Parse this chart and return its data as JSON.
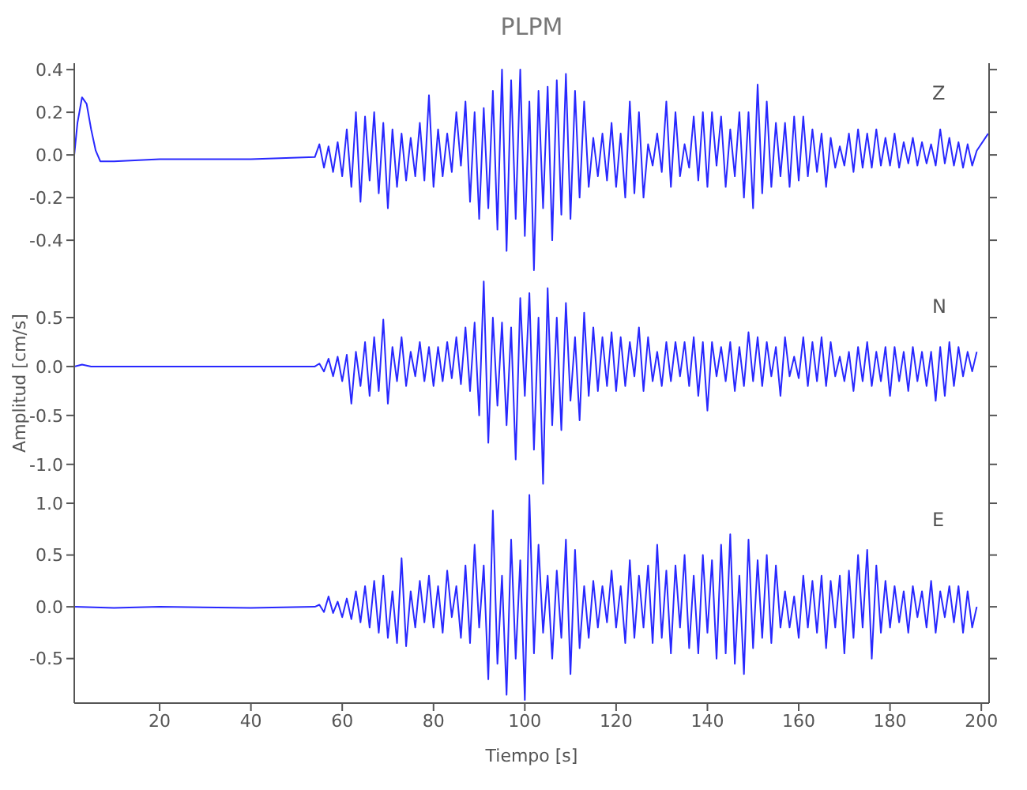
{
  "chart_data": [
    {
      "type": "line",
      "title": "PLPM",
      "annotations": [
        "Z"
      ],
      "xlim": [
        1.3,
        201.7
      ],
      "xticks": [
        20,
        40,
        60,
        80,
        100,
        120,
        140,
        160,
        180,
        200
      ],
      "ylim": [
        -0.57,
        0.43
      ],
      "yticks": [
        -0.4,
        -0.2,
        {
          "value": 0,
          "label": "0.0"
        },
        0.2,
        0.4
      ],
      "tick_labels": "y",
      "series": [
        {
          "color": "#2828ff",
          "x": [
            1.3,
            2,
            3,
            4,
            5,
            6,
            7,
            10,
            20,
            40,
            54,
            55,
            56,
            57,
            58,
            59,
            60,
            61,
            62,
            63,
            64,
            65,
            66,
            67,
            68,
            69,
            70,
            71,
            72,
            73,
            74,
            75,
            76,
            77,
            78,
            79,
            80,
            81,
            82,
            83,
            84,
            85,
            86,
            87,
            88,
            89,
            90,
            91,
            92,
            93,
            94,
            95,
            96,
            97,
            98,
            99,
            100,
            101,
            102,
            103,
            104,
            105,
            106,
            107,
            108,
            109,
            110,
            111,
            112,
            113,
            114,
            115,
            116,
            117,
            118,
            119,
            120,
            121,
            122,
            123,
            124,
            125,
            126,
            127,
            128,
            129,
            130,
            131,
            132,
            133,
            134,
            135,
            136,
            137,
            138,
            139,
            140,
            141,
            142,
            143,
            144,
            145,
            146,
            147,
            148,
            149,
            150,
            151,
            152,
            153,
            154,
            155,
            156,
            157,
            158,
            159,
            160,
            161,
            162,
            163,
            164,
            165,
            166,
            167,
            168,
            169,
            170,
            171,
            172,
            173,
            174,
            175,
            176,
            177,
            178,
            179,
            180,
            181,
            182,
            183,
            184,
            185,
            186,
            187,
            188,
            189,
            190,
            191,
            192,
            193,
            194,
            195,
            196,
            197,
            198,
            199,
            201.5
          ],
          "values": [
            0.0,
            0.15,
            0.27,
            0.24,
            0.12,
            0.02,
            -0.03,
            -0.03,
            -0.02,
            -0.02,
            -0.01,
            0.05,
            -0.06,
            0.04,
            -0.08,
            0.06,
            -0.1,
            0.12,
            -0.15,
            0.2,
            -0.22,
            0.18,
            -0.12,
            0.2,
            -0.18,
            0.15,
            -0.25,
            0.12,
            -0.15,
            0.1,
            -0.12,
            0.08,
            -0.1,
            0.15,
            -0.12,
            0.28,
            -0.15,
            0.12,
            -0.1,
            0.1,
            -0.08,
            0.2,
            -0.05,
            0.25,
            -0.22,
            0.2,
            -0.3,
            0.22,
            -0.25,
            0.3,
            -0.35,
            0.4,
            -0.45,
            0.35,
            -0.3,
            0.4,
            -0.38,
            0.25,
            -0.54,
            0.3,
            -0.25,
            0.32,
            -0.4,
            0.35,
            -0.28,
            0.38,
            -0.3,
            0.3,
            -0.2,
            0.25,
            -0.15,
            0.08,
            -0.1,
            0.1,
            -0.12,
            0.15,
            -0.15,
            0.1,
            -0.2,
            0.25,
            -0.18,
            0.2,
            -0.2,
            0.05,
            -0.05,
            0.1,
            -0.08,
            0.25,
            -0.15,
            0.2,
            -0.1,
            0.05,
            -0.06,
            0.18,
            -0.12,
            0.2,
            -0.15,
            0.2,
            -0.05,
            0.18,
            -0.15,
            0.12,
            -0.1,
            0.2,
            -0.2,
            0.2,
            -0.25,
            0.33,
            -0.18,
            0.25,
            -0.15,
            0.15,
            -0.1,
            0.15,
            -0.15,
            0.18,
            -0.12,
            0.18,
            -0.1,
            0.12,
            -0.08,
            0.1,
            -0.15,
            0.08,
            -0.06,
            0.04,
            -0.05,
            0.1,
            -0.08,
            0.12,
            -0.06,
            0.1,
            -0.06,
            0.12,
            -0.05,
            0.08,
            -0.05,
            0.1,
            -0.06,
            0.06,
            -0.04,
            0.08,
            -0.05,
            0.06,
            -0.04,
            0.05,
            -0.05,
            0.12,
            -0.04,
            0.08,
            -0.05,
            0.06,
            -0.06,
            0.05,
            -0.05,
            0.02,
            0.1
          ]
        }
      ]
    },
    {
      "type": "line",
      "ylabel": "Amplitud [cm/s]",
      "annotations": [
        "N"
      ],
      "xlim": [
        1.3,
        201.7
      ],
      "xticks": [
        20,
        40,
        60,
        80,
        100,
        120,
        140,
        160,
        180,
        200
      ],
      "ylim": [
        -1.26,
        0.92
      ],
      "yticks": [
        {
          "value": -1,
          "label": "-1.0"
        },
        -0.5,
        {
          "value": 0,
          "label": "0.0"
        },
        0.5
      ],
      "tick_labels": "y",
      "series": [
        {
          "color": "#2828ff",
          "x": [
            1.3,
            3,
            5,
            20,
            54,
            55,
            56,
            57,
            58,
            59,
            60,
            61,
            62,
            63,
            64,
            65,
            66,
            67,
            68,
            69,
            70,
            71,
            72,
            73,
            74,
            75,
            76,
            77,
            78,
            79,
            80,
            81,
            82,
            83,
            84,
            85,
            86,
            87,
            88,
            89,
            90,
            91,
            92,
            93,
            94,
            95,
            96,
            97,
            98,
            99,
            100,
            101,
            102,
            103,
            104,
            105,
            106,
            107,
            108,
            109,
            110,
            111,
            112,
            113,
            114,
            115,
            116,
            117,
            118,
            119,
            120,
            121,
            122,
            123,
            124,
            125,
            126,
            127,
            128,
            129,
            130,
            131,
            132,
            133,
            134,
            135,
            136,
            137,
            138,
            139,
            140,
            141,
            142,
            143,
            144,
            145,
            146,
            147,
            148,
            149,
            150,
            151,
            152,
            153,
            154,
            155,
            156,
            157,
            158,
            159,
            160,
            161,
            162,
            163,
            164,
            165,
            166,
            167,
            168,
            169,
            170,
            171,
            172,
            173,
            174,
            175,
            176,
            177,
            178,
            179,
            180,
            181,
            182,
            183,
            184,
            185,
            186,
            187,
            188,
            189,
            190,
            191,
            192,
            193,
            194,
            195,
            196,
            197,
            198,
            199
          ],
          "values": [
            0.0,
            0.02,
            0.0,
            0.0,
            0.0,
            0.03,
            -0.05,
            0.08,
            -0.1,
            0.1,
            -0.15,
            0.12,
            -0.38,
            0.15,
            -0.2,
            0.25,
            -0.3,
            0.3,
            -0.25,
            0.48,
            -0.38,
            0.2,
            -0.15,
            0.3,
            -0.2,
            0.15,
            -0.1,
            0.25,
            -0.15,
            0.2,
            -0.2,
            0.2,
            -0.15,
            0.25,
            -0.12,
            0.3,
            -0.18,
            0.4,
            -0.25,
            0.45,
            -0.5,
            0.87,
            -0.78,
            0.5,
            -0.4,
            0.45,
            -0.6,
            0.4,
            -0.95,
            0.7,
            -0.3,
            0.75,
            -0.85,
            0.5,
            -1.2,
            0.8,
            -0.6,
            0.5,
            -0.65,
            0.65,
            -0.35,
            0.3,
            -0.55,
            0.55,
            -0.3,
            0.4,
            -0.25,
            0.3,
            -0.2,
            0.35,
            -0.25,
            0.3,
            -0.2,
            0.25,
            -0.1,
            0.4,
            -0.25,
            0.3,
            -0.15,
            0.15,
            -0.2,
            0.25,
            -0.15,
            0.25,
            -0.1,
            0.25,
            -0.2,
            0.3,
            -0.3,
            0.25,
            -0.45,
            0.25,
            -0.1,
            0.2,
            -0.15,
            0.25,
            -0.25,
            0.2,
            -0.2,
            0.35,
            -0.15,
            0.3,
            -0.2,
            0.25,
            -0.1,
            0.2,
            -0.3,
            0.3,
            -0.1,
            0.1,
            -0.12,
            0.3,
            -0.2,
            0.25,
            -0.15,
            0.3,
            -0.2,
            0.25,
            -0.1,
            0.1,
            -0.15,
            0.15,
            -0.25,
            0.2,
            -0.15,
            0.25,
            -0.2,
            0.15,
            -0.15,
            0.2,
            -0.3,
            0.2,
            -0.15,
            0.15,
            -0.25,
            0.2,
            -0.15,
            0.15,
            -0.2,
            0.15,
            -0.35,
            0.2,
            -0.3,
            0.25,
            -0.2,
            0.2,
            -0.1,
            0.15,
            -0.05,
            0.15
          ]
        }
      ]
    },
    {
      "type": "line",
      "xlabel": "Tiempo [s]",
      "annotations": [
        "E"
      ],
      "xlim": [
        1.3,
        201.7
      ],
      "xticks": [
        20,
        40,
        60,
        80,
        100,
        120,
        140,
        160,
        180,
        200
      ],
      "ylim": [
        -0.93,
        1.13
      ],
      "yticks": [
        -0.5,
        {
          "value": 0,
          "label": "0.0"
        },
        0.5,
        {
          "value": 1,
          "label": "1.0"
        }
      ],
      "series": [
        {
          "color": "#2828ff",
          "x": [
            1.3,
            10,
            20,
            40,
            54,
            55,
            56,
            57,
            58,
            59,
            60,
            61,
            62,
            63,
            64,
            65,
            66,
            67,
            68,
            69,
            70,
            71,
            72,
            73,
            74,
            75,
            76,
            77,
            78,
            79,
            80,
            81,
            82,
            83,
            84,
            85,
            86,
            87,
            88,
            89,
            90,
            91,
            92,
            93,
            94,
            95,
            96,
            97,
            98,
            99,
            100,
            101,
            102,
            103,
            104,
            105,
            106,
            107,
            108,
            109,
            110,
            111,
            112,
            113,
            114,
            115,
            116,
            117,
            118,
            119,
            120,
            121,
            122,
            123,
            124,
            125,
            126,
            127,
            128,
            129,
            130,
            131,
            132,
            133,
            134,
            135,
            136,
            137,
            138,
            139,
            140,
            141,
            142,
            143,
            144,
            145,
            146,
            147,
            148,
            149,
            150,
            151,
            152,
            153,
            154,
            155,
            156,
            157,
            158,
            159,
            160,
            161,
            162,
            163,
            164,
            165,
            166,
            167,
            168,
            169,
            170,
            171,
            172,
            173,
            174,
            175,
            176,
            177,
            178,
            179,
            180,
            181,
            182,
            183,
            184,
            185,
            186,
            187,
            188,
            189,
            190,
            191,
            192,
            193,
            194,
            195,
            196,
            197,
            198,
            199
          ],
          "values": [
            0.0,
            -0.01,
            0.0,
            -0.01,
            0.0,
            0.02,
            -0.05,
            0.1,
            -0.06,
            0.05,
            -0.1,
            0.08,
            -0.12,
            0.15,
            -0.15,
            0.2,
            -0.2,
            0.25,
            -0.25,
            0.3,
            -0.3,
            0.15,
            -0.35,
            0.47,
            -0.38,
            0.15,
            -0.2,
            0.25,
            -0.15,
            0.3,
            -0.2,
            0.2,
            -0.25,
            0.35,
            -0.1,
            0.2,
            -0.3,
            0.4,
            -0.35,
            0.6,
            -0.2,
            0.4,
            -0.7,
            0.93,
            -0.55,
            0.3,
            -0.85,
            0.65,
            -0.5,
            0.45,
            -0.9,
            1.08,
            -0.45,
            0.6,
            -0.25,
            0.3,
            -0.5,
            0.35,
            -0.3,
            0.65,
            -0.65,
            0.55,
            -0.4,
            0.2,
            -0.3,
            0.25,
            -0.2,
            0.2,
            -0.15,
            0.35,
            -0.2,
            0.2,
            -0.35,
            0.45,
            -0.3,
            0.3,
            -0.2,
            0.4,
            -0.35,
            0.6,
            -0.3,
            0.35,
            -0.45,
            0.4,
            -0.2,
            0.5,
            -0.4,
            0.3,
            -0.45,
            0.5,
            -0.25,
            0.45,
            -0.5,
            0.6,
            -0.45,
            0.7,
            -0.55,
            0.3,
            -0.65,
            0.65,
            -0.4,
            0.45,
            -0.3,
            0.5,
            -0.35,
            0.4,
            -0.2,
            0.15,
            -0.2,
            0.1,
            -0.3,
            0.3,
            -0.2,
            0.25,
            -0.25,
            0.3,
            -0.4,
            0.25,
            -0.2,
            0.3,
            -0.45,
            0.35,
            -0.3,
            0.5,
            -0.2,
            0.55,
            -0.5,
            0.4,
            -0.25,
            0.25,
            -0.2,
            0.2,
            -0.15,
            0.15,
            -0.25,
            0.2,
            -0.1,
            0.15,
            -0.2,
            0.25,
            -0.25,
            0.15,
            -0.1,
            0.2,
            -0.15,
            0.2,
            -0.25,
            0.15,
            -0.2,
            0.0
          ]
        }
      ]
    }
  ]
}
